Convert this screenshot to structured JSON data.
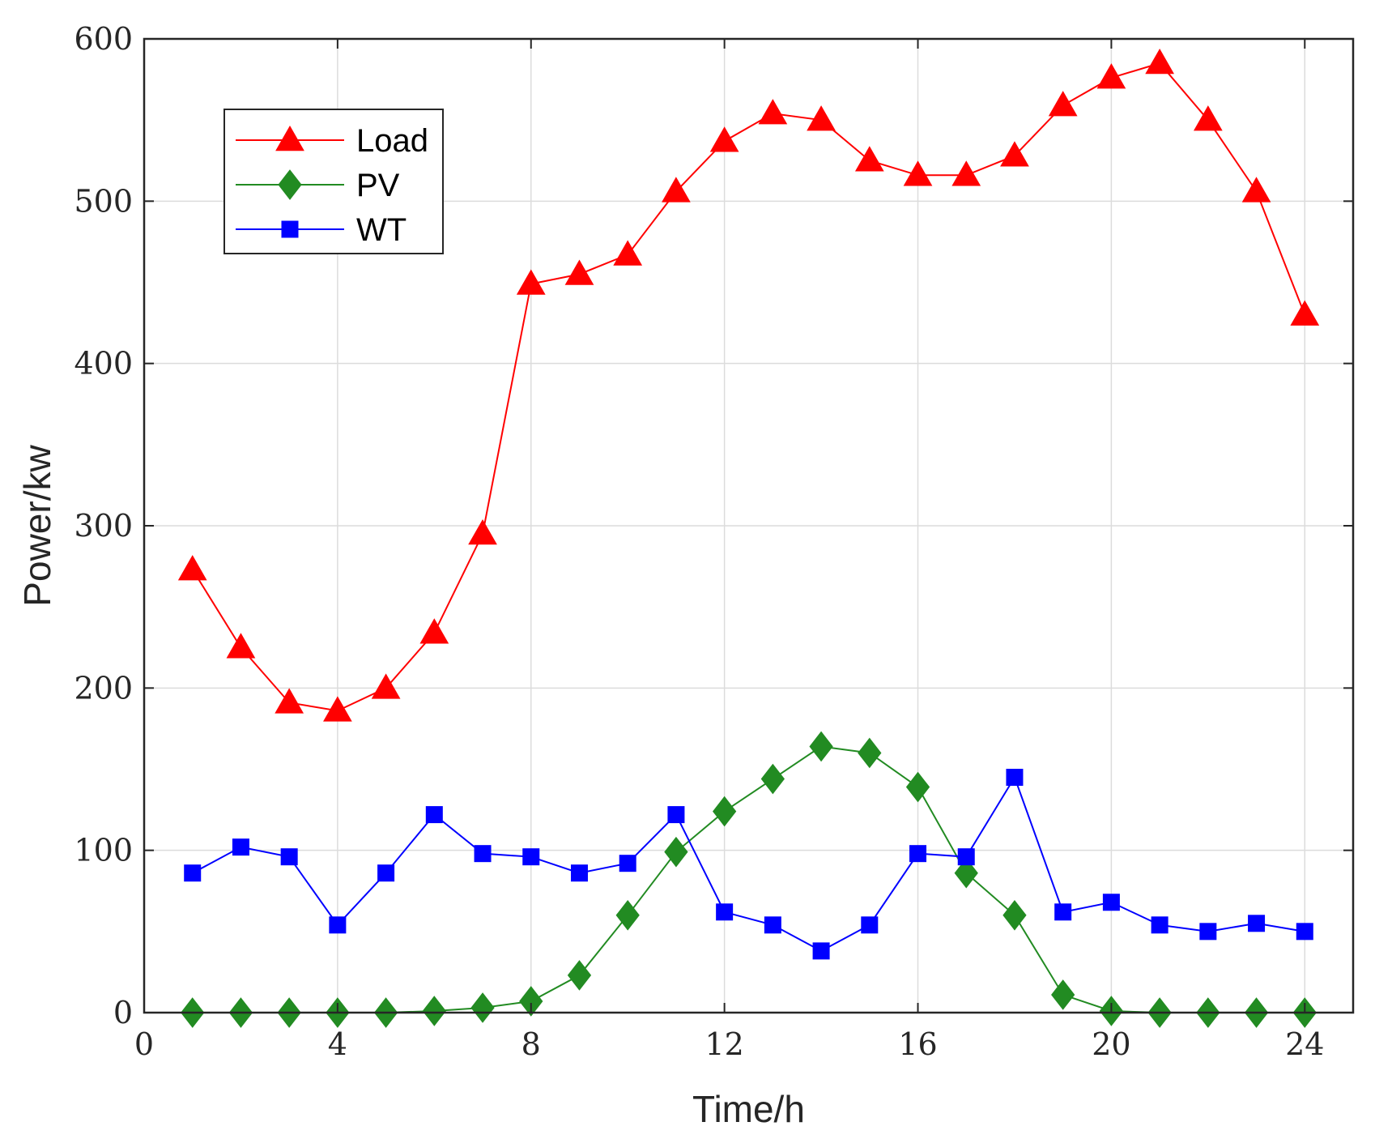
{
  "chart_data": {
    "type": "line",
    "xlabel": "Time/h",
    "ylabel": "Power/kw",
    "xlim": [
      0,
      25
    ],
    "ylim": [
      0,
      600
    ],
    "xticks": [
      0,
      4,
      8,
      12,
      16,
      20,
      24
    ],
    "yticks": [
      0,
      100,
      200,
      300,
      400,
      500,
      600
    ],
    "grid": true,
    "legend_position": "top-left",
    "x": [
      1,
      2,
      3,
      4,
      5,
      6,
      7,
      8,
      9,
      10,
      11,
      12,
      13,
      14,
      15,
      16,
      17,
      18,
      19,
      20,
      21,
      22,
      23,
      24
    ],
    "series": [
      {
        "name": "Load",
        "color": "#ff0000",
        "marker": "triangle",
        "values": [
          273,
          225,
          191,
          186,
          200,
          234,
          295,
          449,
          455,
          467,
          506,
          537,
          554,
          550,
          525,
          516,
          516,
          528,
          559,
          576,
          585,
          550,
          506,
          430
        ]
      },
      {
        "name": "PV",
        "color": "#228b22",
        "marker": "diamond",
        "values": [
          0,
          0,
          0,
          0,
          0,
          1,
          3,
          7,
          23,
          60,
          99,
          124,
          144,
          164,
          160,
          139,
          86,
          60,
          11,
          1,
          0,
          0,
          0,
          0
        ]
      },
      {
        "name": "WT",
        "color": "#0000ff",
        "marker": "square",
        "values": [
          86,
          102,
          96,
          54,
          86,
          122,
          98,
          96,
          86,
          92,
          122,
          62,
          54,
          38,
          54,
          98,
          96,
          145,
          62,
          68,
          54,
          50,
          55,
          50
        ]
      }
    ]
  }
}
